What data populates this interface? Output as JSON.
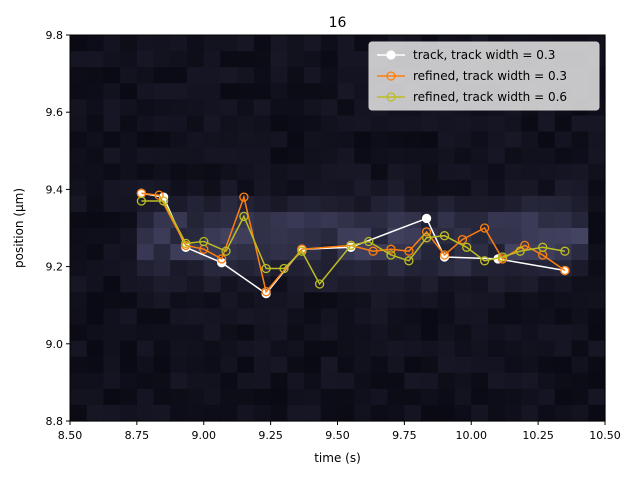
{
  "chart_data": {
    "type": "line",
    "title": "16",
    "xlabel": "time (s)",
    "ylabel": "position (μm)",
    "xlim": [
      8.5,
      10.5
    ],
    "ylim": [
      8.8,
      9.8
    ],
    "xticks": [
      "8.50",
      "8.75",
      "9.00",
      "9.25",
      "9.50",
      "9.75",
      "10.00",
      "10.25",
      "10.50"
    ],
    "yticks": [
      "8.8",
      "9.0",
      "9.2",
      "9.4",
      "9.6",
      "9.8"
    ],
    "legend_position": "top-right",
    "grid": false,
    "background": "heatmap",
    "series": [
      {
        "name": "track, track width = 0.3",
        "color": "#ffffff",
        "marker": "filled-circle",
        "points": [
          [
            8.767,
            9.39
          ],
          [
            8.85,
            9.38
          ],
          [
            8.933,
            9.25
          ],
          [
            9.067,
            9.21
          ],
          [
            9.233,
            9.13
          ],
          [
            9.367,
            9.245
          ],
          [
            9.55,
            9.25
          ],
          [
            9.833,
            9.325
          ],
          [
            9.9,
            9.225
          ],
          [
            10.1,
            9.22
          ],
          [
            10.35,
            9.19
          ]
        ]
      },
      {
        "name": "refined, track width = 0.3",
        "color": "#ff7f0e",
        "marker": "open-circle",
        "points": [
          [
            8.767,
            9.39
          ],
          [
            8.833,
            9.385
          ],
          [
            8.933,
            9.255
          ],
          [
            9.0,
            9.245
          ],
          [
            9.067,
            9.22
          ],
          [
            9.15,
            9.38
          ],
          [
            9.233,
            9.135
          ],
          [
            9.367,
            9.245
          ],
          [
            9.55,
            9.255
          ],
          [
            9.633,
            9.24
          ],
          [
            9.7,
            9.245
          ],
          [
            9.767,
            9.24
          ],
          [
            9.833,
            9.29
          ],
          [
            9.9,
            9.23
          ],
          [
            9.967,
            9.27
          ],
          [
            10.05,
            9.3
          ],
          [
            10.117,
            9.22
          ],
          [
            10.2,
            9.255
          ],
          [
            10.267,
            9.23
          ],
          [
            10.35,
            9.19
          ]
        ]
      },
      {
        "name": "refined, track width = 0.6",
        "color": "#bcbd22",
        "marker": "open-circle",
        "points": [
          [
            8.767,
            9.37
          ],
          [
            8.85,
            9.37
          ],
          [
            8.933,
            9.26
          ],
          [
            9.0,
            9.265
          ],
          [
            9.083,
            9.24
          ],
          [
            9.15,
            9.33
          ],
          [
            9.233,
            9.195
          ],
          [
            9.3,
            9.195
          ],
          [
            9.367,
            9.24
          ],
          [
            9.433,
            9.155
          ],
          [
            9.55,
            9.255
          ],
          [
            9.617,
            9.265
          ],
          [
            9.7,
            9.23
          ],
          [
            9.767,
            9.215
          ],
          [
            9.833,
            9.275
          ],
          [
            9.9,
            9.28
          ],
          [
            9.983,
            9.25
          ],
          [
            10.05,
            9.215
          ],
          [
            10.117,
            9.225
          ],
          [
            10.183,
            9.24
          ],
          [
            10.267,
            9.25
          ],
          [
            10.35,
            9.24
          ]
        ]
      }
    ]
  }
}
